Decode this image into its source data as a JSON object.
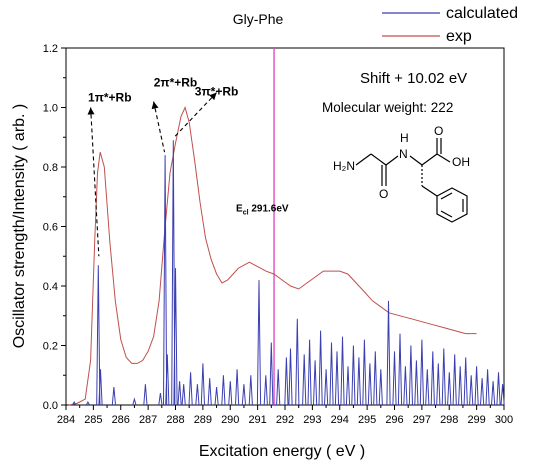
{
  "chart_data": {
    "type": "line",
    "title": "Gly-Phe",
    "xlabel": "Excitation energy ( eV )",
    "ylabel": "Oscillator strength/Intensity ( arb. )",
    "xlim": [
      284,
      300
    ],
    "ylim": [
      0,
      1.2
    ],
    "x_ticks": [
      "284",
      "285",
      "286",
      "287",
      "288",
      "289",
      "290",
      "291",
      "292",
      "293",
      "294",
      "295",
      "296",
      "297",
      "298",
      "299",
      "300"
    ],
    "y_ticks": [
      "0.0",
      "0.2",
      "0.4",
      "0.6",
      "0.8",
      "1.0",
      "1.2"
    ],
    "legend_position": "top-right",
    "colors": {
      "calculated": "#3b3fb0",
      "exp": "#c0504d",
      "vline": "#e040c0"
    },
    "series": [
      {
        "name": "calculated",
        "sticks": [
          [
            284.3,
            0.01
          ],
          [
            284.8,
            0.01
          ],
          [
            285.18,
            0.47
          ],
          [
            285.26,
            0.12
          ],
          [
            285.75,
            0.06
          ],
          [
            286.5,
            0.02
          ],
          [
            286.9,
            0.07
          ],
          [
            287.45,
            0.04
          ],
          [
            287.62,
            0.84
          ],
          [
            287.7,
            0.17
          ],
          [
            287.92,
            0.89
          ],
          [
            288.0,
            0.46
          ],
          [
            288.15,
            0.08
          ],
          [
            288.3,
            0.07
          ],
          [
            288.55,
            0.11
          ],
          [
            288.8,
            0.07
          ],
          [
            289.0,
            0.14
          ],
          [
            289.25,
            0.09
          ],
          [
            289.5,
            0.06
          ],
          [
            289.75,
            0.1
          ],
          [
            290.0,
            0.08
          ],
          [
            290.25,
            0.12
          ],
          [
            290.5,
            0.07
          ],
          [
            290.75,
            0.1
          ],
          [
            291.05,
            0.42
          ],
          [
            291.3,
            0.1
          ],
          [
            291.5,
            0.21
          ],
          [
            291.75,
            0.12
          ],
          [
            292.05,
            0.16
          ],
          [
            292.2,
            0.19
          ],
          [
            292.45,
            0.29
          ],
          [
            292.7,
            0.17
          ],
          [
            292.9,
            0.22
          ],
          [
            293.1,
            0.15
          ],
          [
            293.3,
            0.25
          ],
          [
            293.5,
            0.12
          ],
          [
            293.7,
            0.21
          ],
          [
            293.9,
            0.18
          ],
          [
            294.1,
            0.23
          ],
          [
            294.3,
            0.13
          ],
          [
            294.5,
            0.2
          ],
          [
            294.7,
            0.16
          ],
          [
            294.9,
            0.22
          ],
          [
            295.1,
            0.14
          ],
          [
            295.3,
            0.18
          ],
          [
            295.5,
            0.12
          ],
          [
            295.78,
            0.35
          ],
          [
            296.0,
            0.18
          ],
          [
            296.2,
            0.24
          ],
          [
            296.4,
            0.13
          ],
          [
            296.6,
            0.2
          ],
          [
            296.8,
            0.15
          ],
          [
            297.0,
            0.22
          ],
          [
            297.2,
            0.12
          ],
          [
            297.4,
            0.18
          ],
          [
            297.6,
            0.14
          ],
          [
            297.8,
            0.19
          ],
          [
            298.0,
            0.11
          ],
          [
            298.2,
            0.17
          ],
          [
            298.4,
            0.13
          ],
          [
            298.6,
            0.16
          ],
          [
            298.8,
            0.1
          ],
          [
            299.0,
            0.13
          ],
          [
            299.2,
            0.09
          ],
          [
            299.4,
            0.12
          ],
          [
            299.6,
            0.08
          ],
          [
            299.8,
            0.11
          ],
          [
            299.95,
            0.07
          ]
        ]
      },
      {
        "name": "exp",
        "points": [
          [
            284.1,
            0.0
          ],
          [
            284.4,
            0.005
          ],
          [
            284.7,
            0.02
          ],
          [
            284.9,
            0.15
          ],
          [
            285.05,
            0.55
          ],
          [
            285.15,
            0.78
          ],
          [
            285.25,
            0.85
          ],
          [
            285.4,
            0.8
          ],
          [
            285.6,
            0.55
          ],
          [
            285.8,
            0.35
          ],
          [
            286.0,
            0.22
          ],
          [
            286.2,
            0.16
          ],
          [
            286.4,
            0.14
          ],
          [
            286.6,
            0.14
          ],
          [
            286.8,
            0.15
          ],
          [
            287.0,
            0.18
          ],
          [
            287.2,
            0.23
          ],
          [
            287.4,
            0.35
          ],
          [
            287.6,
            0.58
          ],
          [
            287.8,
            0.78
          ],
          [
            288.0,
            0.88
          ],
          [
            288.2,
            0.97
          ],
          [
            288.35,
            1.0
          ],
          [
            288.5,
            0.95
          ],
          [
            288.7,
            0.82
          ],
          [
            288.9,
            0.68
          ],
          [
            289.1,
            0.56
          ],
          [
            289.3,
            0.49
          ],
          [
            289.5,
            0.44
          ],
          [
            289.7,
            0.41
          ],
          [
            289.9,
            0.42
          ],
          [
            290.1,
            0.44
          ],
          [
            290.3,
            0.46
          ],
          [
            290.5,
            0.47
          ],
          [
            290.7,
            0.48
          ],
          [
            290.9,
            0.47
          ],
          [
            291.1,
            0.46
          ],
          [
            291.3,
            0.45
          ],
          [
            291.6,
            0.44
          ],
          [
            291.9,
            0.42
          ],
          [
            292.2,
            0.4
          ],
          [
            292.5,
            0.39
          ],
          [
            292.8,
            0.41
          ],
          [
            293.1,
            0.43
          ],
          [
            293.4,
            0.45
          ],
          [
            293.7,
            0.45
          ],
          [
            294.0,
            0.45
          ],
          [
            294.3,
            0.44
          ],
          [
            294.6,
            0.41
          ],
          [
            294.9,
            0.38
          ],
          [
            295.2,
            0.35
          ],
          [
            295.5,
            0.33
          ],
          [
            295.8,
            0.31
          ],
          [
            296.2,
            0.3
          ],
          [
            296.6,
            0.29
          ],
          [
            297.0,
            0.28
          ],
          [
            297.4,
            0.27
          ],
          [
            297.8,
            0.26
          ],
          [
            298.2,
            0.25
          ],
          [
            298.6,
            0.24
          ],
          [
            299.0,
            0.24
          ]
        ]
      }
    ],
    "vertical_line": {
      "x": 291.6,
      "label_main": "E",
      "label_sub": "cl",
      "label_value": "291.6eV"
    },
    "annotations": [
      {
        "text": "1π*+Rb",
        "x": 285.6,
        "y": 1.02,
        "arrow_from": [
          284.9,
          1.0
        ],
        "arrow_to": [
          285.2,
          0.5
        ]
      },
      {
        "text": "2π*+Rb",
        "x": 288.0,
        "y": 1.07,
        "arrow_from": [
          287.2,
          1.02
        ],
        "arrow_to": [
          287.6,
          0.85
        ]
      },
      {
        "text": "3π*+Rb",
        "x": 289.5,
        "y": 1.04,
        "arrow_from": [
          289.5,
          1.05
        ],
        "arrow_to": [
          287.95,
          0.9
        ]
      }
    ],
    "info_text": {
      "shift": "Shift + 10.02 eV",
      "molecular_weight": "Molecular weight: 222"
    },
    "structure_labels": {
      "h2n": "H₂N",
      "h": "H",
      "n": "N",
      "o1": "O",
      "o2": "O",
      "oh": "OH"
    }
  }
}
